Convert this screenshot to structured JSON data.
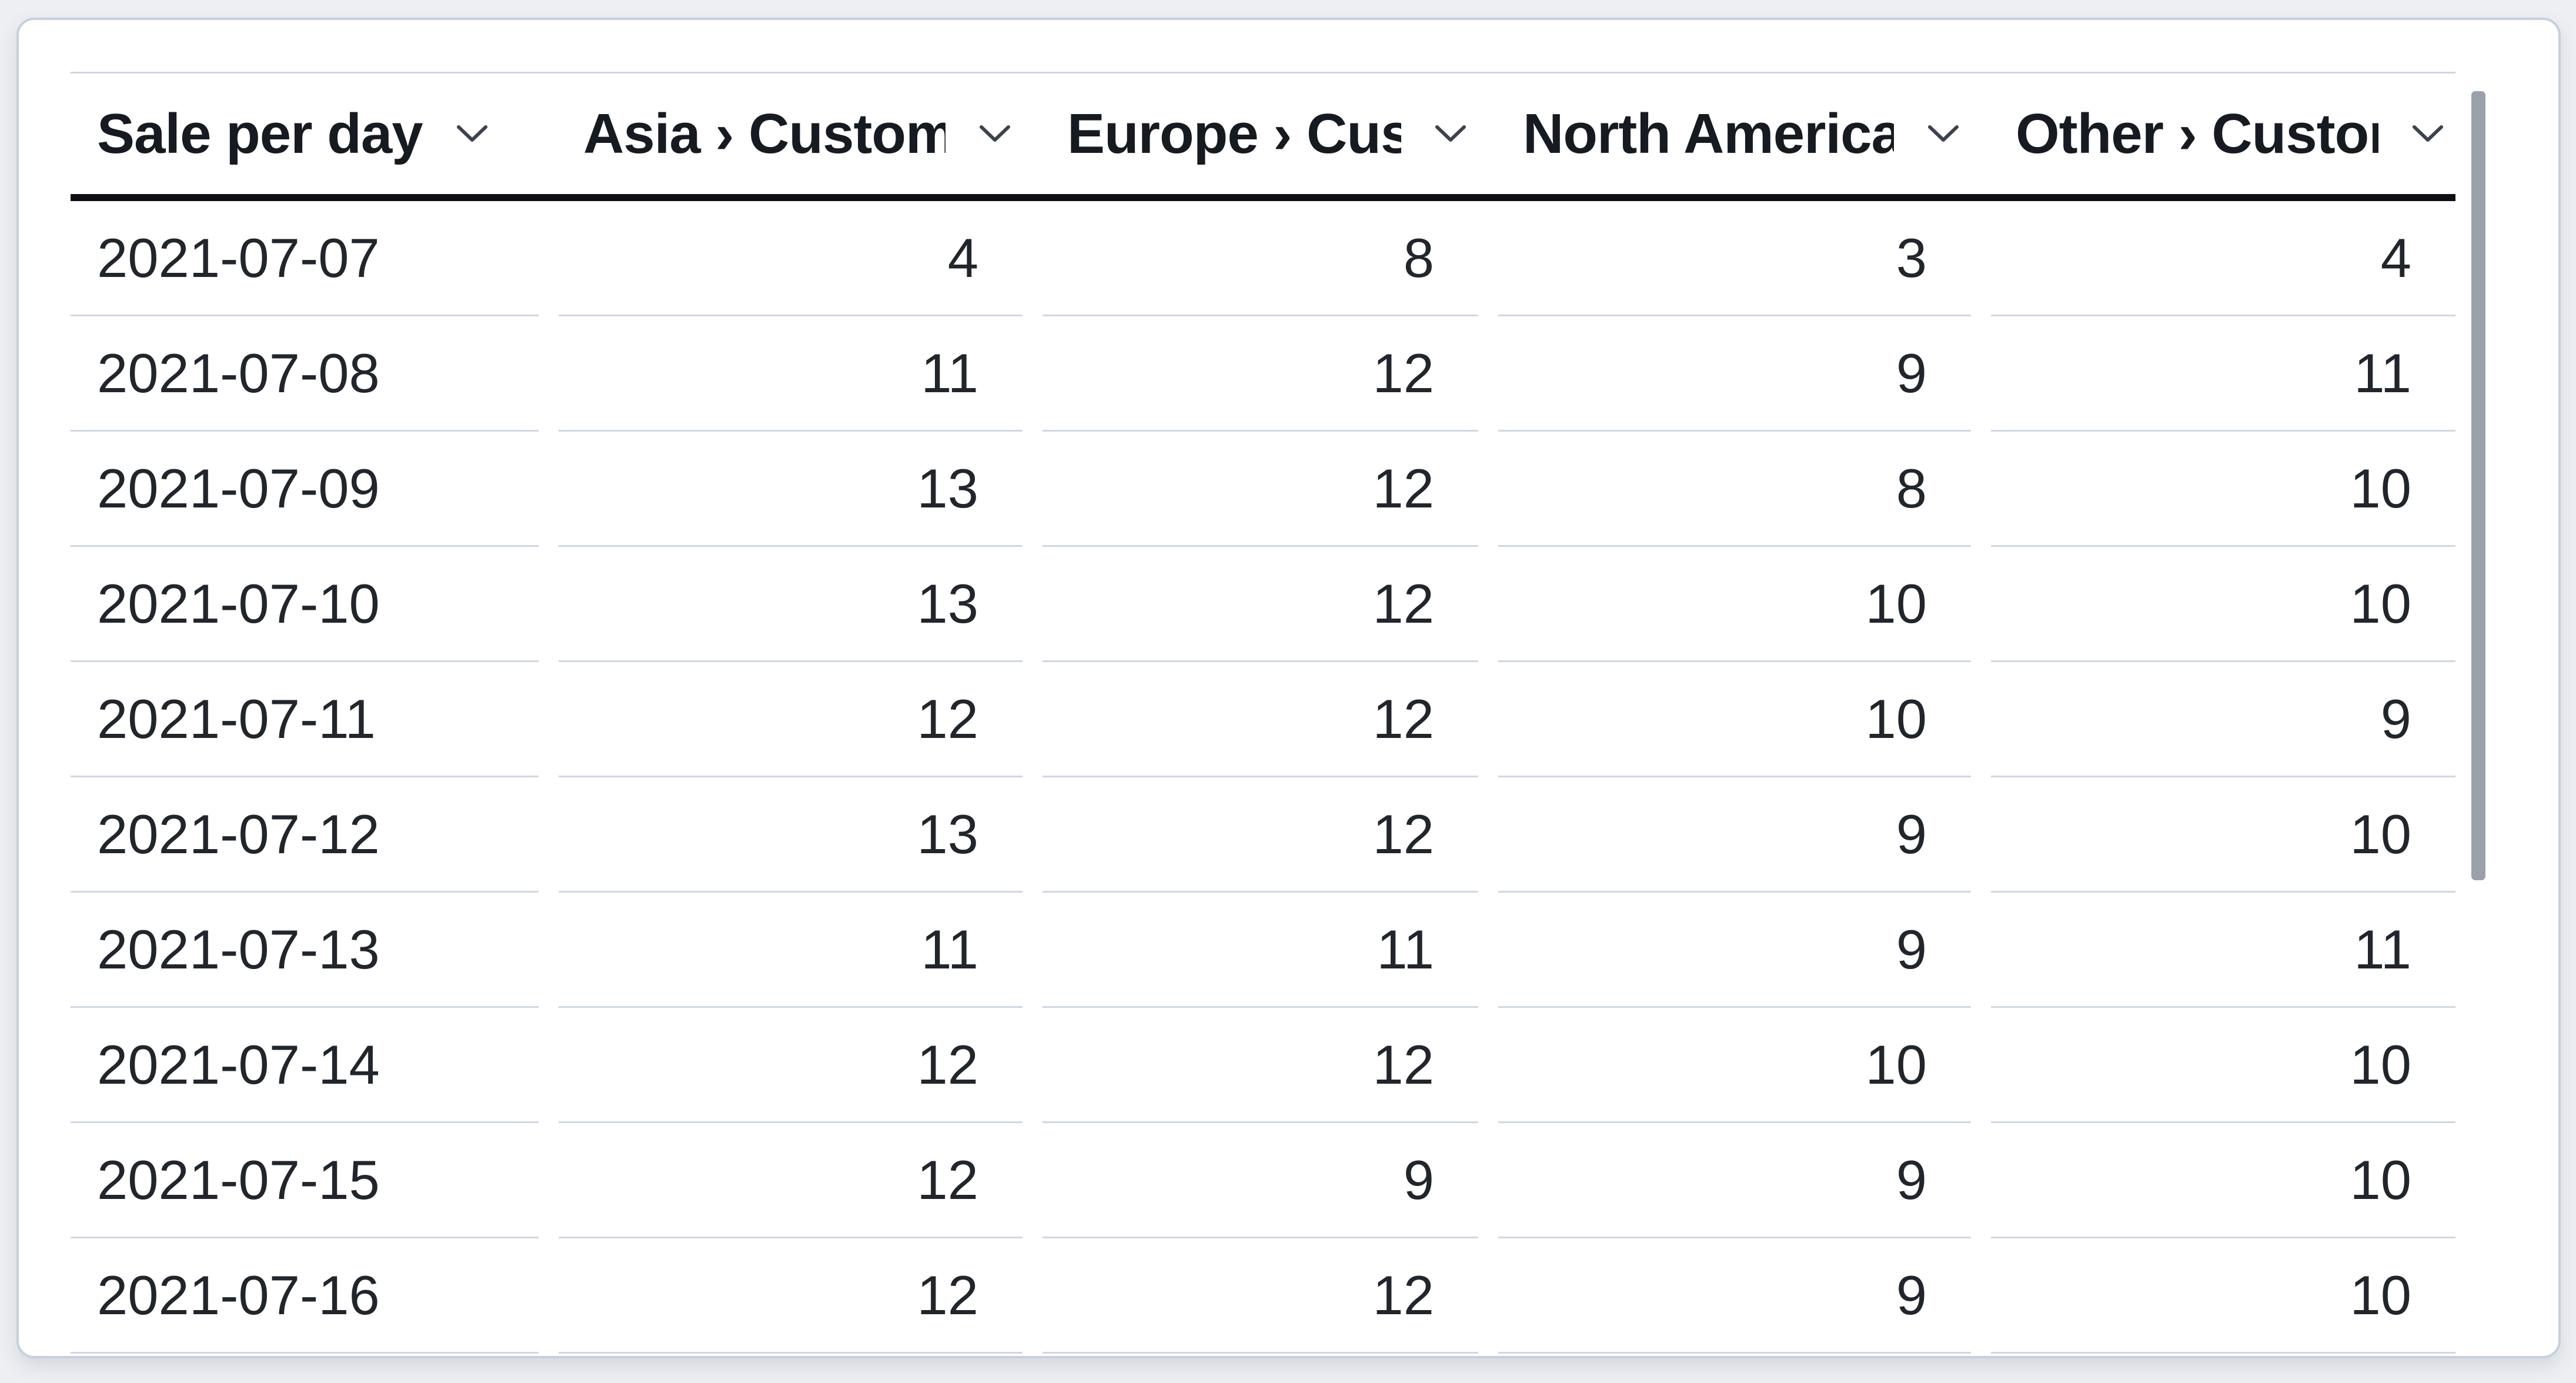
{
  "widget": {
    "type": "table-card",
    "visible_row_count": 10
  },
  "table": {
    "columns": [
      {
        "label": "Sale per day",
        "sort_icon": "chevron-down-icon"
      },
      {
        "label": "Asia › Customers",
        "sort_icon": "chevron-down-icon"
      },
      {
        "label": "Europe › Customers",
        "sort_icon": "chevron-down-icon"
      },
      {
        "label": "North America › Customers",
        "sort_icon": "chevron-down-icon"
      },
      {
        "label": "Other › Customers",
        "sort_icon": "chevron-down-icon"
      }
    ],
    "rows": [
      [
        "2021-07-07",
        4,
        8,
        3,
        4
      ],
      [
        "2021-07-08",
        11,
        12,
        9,
        11
      ],
      [
        "2021-07-09",
        13,
        12,
        8,
        10
      ],
      [
        "2021-07-10",
        13,
        12,
        10,
        10
      ],
      [
        "2021-07-11",
        12,
        12,
        10,
        9
      ],
      [
        "2021-07-12",
        13,
        12,
        9,
        10
      ],
      [
        "2021-07-13",
        11,
        11,
        9,
        11
      ],
      [
        "2021-07-14",
        12,
        12,
        10,
        10
      ],
      [
        "2021-07-15",
        12,
        9,
        9,
        10
      ],
      [
        "2021-07-16",
        12,
        12,
        9,
        10
      ]
    ]
  },
  "scrollbar": {
    "orientation": "vertical",
    "thumb_color": "#9aa1aa"
  },
  "colors": {
    "page_background": "#edeff3",
    "card_background": "#ffffff",
    "card_border": "#c7d0dc",
    "header_text": "#161a21",
    "body_text": "#21252c",
    "header_rule": "#0d0f14",
    "row_divider": "#cfd7e1",
    "chevron": "#3d434c"
  }
}
